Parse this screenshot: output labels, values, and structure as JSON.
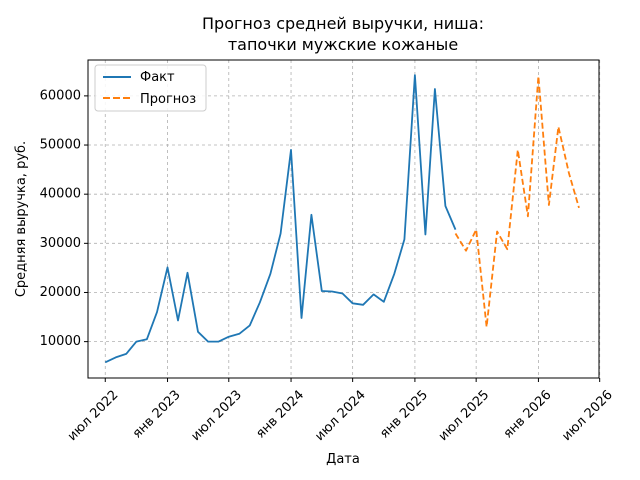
{
  "chart_data": {
    "type": "line",
    "title_lines": [
      "Прогноз средней выручки, ниша:",
      "тапочки мужские кожаные"
    ],
    "xlabel": "Дата",
    "ylabel": "Средняя выручка, руб.",
    "x_range": [
      "2022-05-11",
      "2026-06-29"
    ],
    "ylim": [
      2600,
      67300
    ],
    "x_ticks": [
      {
        "date": "2022-07-01",
        "label": "июл 2022"
      },
      {
        "date": "2023-01-01",
        "label": "янв 2023"
      },
      {
        "date": "2023-07-01",
        "label": "июл 2023"
      },
      {
        "date": "2024-01-01",
        "label": "янв 2024"
      },
      {
        "date": "2024-07-01",
        "label": "июл 2024"
      },
      {
        "date": "2025-01-01",
        "label": "янв 2025"
      },
      {
        "date": "2025-07-01",
        "label": "июл 2025"
      },
      {
        "date": "2026-01-01",
        "label": "янв 2026"
      },
      {
        "date": "2026-07-01",
        "label": "июл 2026"
      }
    ],
    "y_ticks": [
      10000,
      20000,
      30000,
      40000,
      50000,
      60000
    ],
    "grid": true,
    "legend_position": "top-left",
    "series": [
      {
        "name": "Факт",
        "color": "#1f77b4",
        "style": "solid",
        "points": [
          {
            "x": "2022-07-01",
            "y": 5800
          },
          {
            "x": "2022-08-01",
            "y": 6800
          },
          {
            "x": "2022-09-01",
            "y": 7500
          },
          {
            "x": "2022-10-01",
            "y": 10000
          },
          {
            "x": "2022-11-01",
            "y": 10500
          },
          {
            "x": "2022-12-01",
            "y": 16000
          },
          {
            "x": "2023-01-01",
            "y": 25100
          },
          {
            "x": "2023-02-01",
            "y": 14300
          },
          {
            "x": "2023-03-01",
            "y": 24000
          },
          {
            "x": "2023-04-01",
            "y": 12000
          },
          {
            "x": "2023-05-01",
            "y": 10000
          },
          {
            "x": "2023-06-01",
            "y": 10000
          },
          {
            "x": "2023-07-01",
            "y": 11000
          },
          {
            "x": "2023-08-01",
            "y": 11600
          },
          {
            "x": "2023-09-01",
            "y": 13300
          },
          {
            "x": "2023-10-01",
            "y": 18000
          },
          {
            "x": "2023-11-01",
            "y": 23800
          },
          {
            "x": "2023-12-01",
            "y": 32000
          },
          {
            "x": "2024-01-01",
            "y": 49000
          },
          {
            "x": "2024-02-01",
            "y": 14800
          },
          {
            "x": "2024-03-01",
            "y": 35800
          },
          {
            "x": "2024-04-01",
            "y": 20300
          },
          {
            "x": "2024-05-01",
            "y": 20200
          },
          {
            "x": "2024-06-01",
            "y": 19800
          },
          {
            "x": "2024-07-01",
            "y": 17800
          },
          {
            "x": "2024-08-01",
            "y": 17500
          },
          {
            "x": "2024-09-01",
            "y": 19600
          },
          {
            "x": "2024-10-01",
            "y": 18100
          },
          {
            "x": "2024-11-01",
            "y": 23800
          },
          {
            "x": "2024-12-01",
            "y": 30800
          },
          {
            "x": "2025-01-01",
            "y": 64200
          },
          {
            "x": "2025-02-01",
            "y": 31800
          },
          {
            "x": "2025-03-01",
            "y": 61400
          },
          {
            "x": "2025-04-01",
            "y": 37600
          },
          {
            "x": "2025-05-01",
            "y": 32800
          }
        ]
      },
      {
        "name": "Прогноз",
        "color": "#ff7f0e",
        "style": "dashed",
        "points": [
          {
            "x": "2025-05-01",
            "y": 32000
          },
          {
            "x": "2025-06-01",
            "y": 28500
          },
          {
            "x": "2025-07-01",
            "y": 32800
          },
          {
            "x": "2025-08-01",
            "y": 13000
          },
          {
            "x": "2025-09-01",
            "y": 32400
          },
          {
            "x": "2025-10-01",
            "y": 28800
          },
          {
            "x": "2025-11-01",
            "y": 49000
          },
          {
            "x": "2025-12-01",
            "y": 35500
          },
          {
            "x": "2026-01-01",
            "y": 64000
          },
          {
            "x": "2026-02-01",
            "y": 37800
          },
          {
            "x": "2026-03-01",
            "y": 53700
          },
          {
            "x": "2026-04-01",
            "y": 44300
          },
          {
            "x": "2026-05-01",
            "y": 37200
          }
        ]
      }
    ]
  }
}
